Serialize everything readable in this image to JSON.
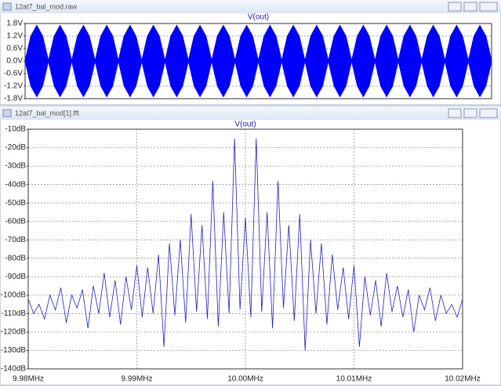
{
  "windows": [
    {
      "title": "12at7_bal_mod.raw"
    },
    {
      "title": "12at7_bal_mod[1].fft"
    }
  ],
  "chart_data": [
    {
      "type": "area",
      "title": "V(out)",
      "color": "#0000ff",
      "grid": true,
      "ylim": [
        -1.8,
        1.8
      ],
      "yticks": [
        {
          "value": 1.8,
          "label": "1.8V"
        },
        {
          "value": 1.2,
          "label": "1.2V"
        },
        {
          "value": 0.6,
          "label": "0.6V"
        },
        {
          "value": 0,
          "label": "0.0V"
        },
        {
          "value": -0.6,
          "label": "-0.6V"
        },
        {
          "value": -1.2,
          "label": "-1.2V"
        },
        {
          "value": -1.8,
          "label": "-1.8V"
        }
      ],
      "values": [
        0,
        1.2,
        1.7,
        1.2,
        0,
        1.2,
        1.7,
        1.2,
        0,
        1.2,
        1.7,
        1.2,
        0,
        1.2,
        1.7,
        1.2,
        0,
        1.2,
        1.7,
        1.2,
        0,
        1.2,
        1.7,
        1.2,
        0,
        1.2,
        1.7,
        1.2,
        0,
        1.2,
        1.7,
        1.2,
        0,
        1.2,
        1.7,
        1.2,
        0,
        1.2,
        1.7,
        1.2,
        0,
        1.2,
        1.7,
        1.2,
        0,
        1.2,
        1.7,
        1.2,
        0,
        1.2,
        1.7,
        1.2,
        0,
        1.2,
        1.7,
        1.2,
        0,
        1.2,
        1.7,
        1.2,
        0,
        1.2,
        1.7,
        1.2,
        0,
        1.2,
        1.7,
        1.2,
        0,
        1.2,
        1.7,
        1.2,
        0,
        1.2,
        1.7,
        1.2,
        0,
        1.2,
        1.7,
        1.2,
        0
      ]
    },
    {
      "type": "line",
      "title": "V(out)",
      "color": "#2020c0",
      "grid": true,
      "xlim": [
        9.98,
        10.02
      ],
      "xticks": [
        {
          "value": 9.98,
          "label": "9.98MHz"
        },
        {
          "value": 9.99,
          "label": "9.99MHz"
        },
        {
          "value": 10.0,
          "label": "10.00MHz"
        },
        {
          "value": 10.01,
          "label": "10.01MHz"
        },
        {
          "value": 10.02,
          "label": "10.02MHz"
        }
      ],
      "ylim": [
        -140,
        -10
      ],
      "yticks": [
        {
          "value": -10,
          "label": "-10dB"
        },
        {
          "value": -20,
          "label": "-20dB"
        },
        {
          "value": -30,
          "label": "-30dB"
        },
        {
          "value": -40,
          "label": "-40dB"
        },
        {
          "value": -50,
          "label": "-50dB"
        },
        {
          "value": -60,
          "label": "-60dB"
        },
        {
          "value": -70,
          "label": "-70dB"
        },
        {
          "value": -80,
          "label": "-80dB"
        },
        {
          "value": -90,
          "label": "-90dB"
        },
        {
          "value": -100,
          "label": "-100dB"
        },
        {
          "value": -110,
          "label": "-110dB"
        },
        {
          "value": -120,
          "label": "-120dB"
        },
        {
          "value": -130,
          "label": "-130dB"
        },
        {
          "value": -140,
          "label": "-140dB"
        }
      ],
      "x": [
        9.98,
        9.9805,
        9.981,
        9.9815,
        9.982,
        9.9825,
        9.983,
        9.9835,
        9.984,
        9.9845,
        9.985,
        9.9855,
        9.986,
        9.9865,
        9.987,
        9.9875,
        9.988,
        9.9885,
        9.989,
        9.9895,
        9.99,
        9.9905,
        9.991,
        9.9915,
        9.992,
        9.9925,
        9.993,
        9.9935,
        9.994,
        9.9945,
        9.995,
        9.9955,
        9.996,
        9.9965,
        9.997,
        9.9975,
        9.998,
        9.9985,
        9.999,
        9.9995,
        10.0,
        10.0005,
        10.001,
        10.0015,
        10.002,
        10.0025,
        10.003,
        10.0035,
        10.004,
        10.0045,
        10.005,
        10.0055,
        10.006,
        10.0065,
        10.007,
        10.0075,
        10.008,
        10.0085,
        10.009,
        10.0095,
        10.01,
        10.0105,
        10.011,
        10.0115,
        10.012,
        10.0125,
        10.013,
        10.0135,
        10.014,
        10.0145,
        10.015,
        10.0155,
        10.016,
        10.0165,
        10.017,
        10.0175,
        10.018,
        10.0185,
        10.019,
        10.0195,
        10.02
      ],
      "values": [
        -102,
        -110,
        -105,
        -113,
        -100,
        -108,
        -96,
        -115,
        -100,
        -107,
        -97,
        -118,
        -95,
        -110,
        -88,
        -112,
        -92,
        -116,
        -90,
        -108,
        -84,
        -112,
        -85,
        -110,
        -78,
        -128,
        -72,
        -111,
        -70,
        -115,
        -56,
        -109,
        -62,
        -113,
        -38,
        -117,
        -55,
        -110,
        -15,
        -108,
        -58,
        -112,
        -15,
        -109,
        -55,
        -118,
        -38,
        -107,
        -62,
        -114,
        -56,
        -130,
        -70,
        -110,
        -72,
        -116,
        -78,
        -108,
        -85,
        -113,
        -84,
        -128,
        -90,
        -111,
        -92,
        -117,
        -88,
        -109,
        -95,
        -112,
        -97,
        -120,
        -100,
        -108,
        -96,
        -114,
        -100,
        -110,
        -105,
        -112,
        -102
      ]
    }
  ]
}
